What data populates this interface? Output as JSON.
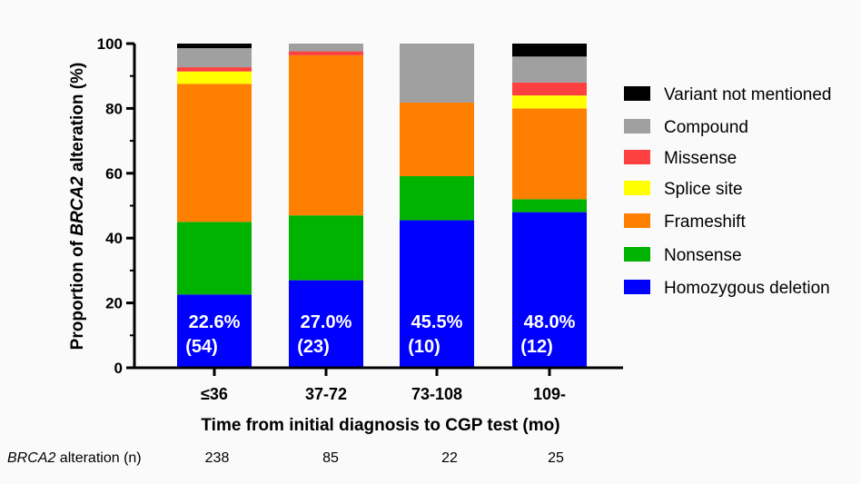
{
  "chart_data": {
    "type": "bar",
    "stacked": true,
    "categories": [
      "≤36",
      "37-72",
      "73-108",
      "109-"
    ],
    "xlabel": "Time from initial diagnosis to CGP test (mo)",
    "ylabel_prefix": "Proportion of ",
    "ylabel_gene": "BRCA2",
    "ylabel_suffix": " alteration (%)",
    "ylim": [
      0,
      100
    ],
    "yticks": [
      0,
      20,
      40,
      60,
      80,
      100
    ],
    "grid": false,
    "legend_position": "right",
    "series": [
      {
        "name": "Homozygous deletion",
        "color": "#0000ff",
        "values": [
          22.6,
          27.0,
          45.5,
          48.0
        ]
      },
      {
        "name": "Nonsense",
        "color": "#00b300",
        "values": [
          22.4,
          20.0,
          13.6,
          4.0
        ]
      },
      {
        "name": "Frameshift",
        "color": "#ff8000",
        "values": [
          42.6,
          49.4,
          22.7,
          28.0
        ]
      },
      {
        "name": "Splice site",
        "color": "#ffff00",
        "values": [
          3.8,
          0.0,
          0.0,
          4.0
        ]
      },
      {
        "name": "Missense",
        "color": "#ff4040",
        "values": [
          1.3,
          1.2,
          0.0,
          4.0
        ]
      },
      {
        "name": "Compound",
        "color": "#a0a0a0",
        "values": [
          5.9,
          2.4,
          18.2,
          8.0
        ]
      },
      {
        "name": "Variant not mentioned",
        "color": "#000000",
        "values": [
          1.4,
          0.0,
          0.0,
          4.0
        ]
      }
    ],
    "bar_labels": [
      {
        "pct": "22.6%",
        "n": "(54)"
      },
      {
        "pct": "27.0%",
        "n": "(23)"
      },
      {
        "pct": "45.5%",
        "n": "(10)"
      },
      {
        "pct": "48.0%",
        "n": "(12)"
      }
    ],
    "count_row": {
      "label_gene": "BRCA2",
      "label_suffix": " alteration (n)",
      "values": [
        "238",
        "85",
        "22",
        "25"
      ]
    }
  }
}
